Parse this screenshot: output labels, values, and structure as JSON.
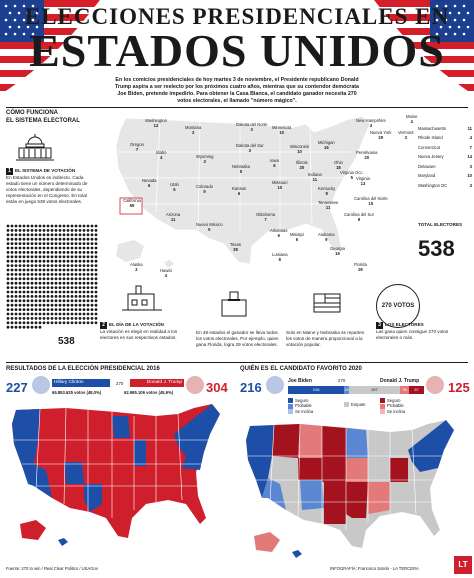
{
  "header": {
    "title_line1": "ELECCIONES PRESIDENCIALES EN",
    "title_line2": "ESTADOS UNIDOS",
    "intro": "En los comicios presidenciales de hoy martes 3 de noviembre, el Presidente republicano Donald Trump aspira a ser reelecto por los próximos cuatro años, mientras que su contendor demócrata Joe Biden, pretende impedirlo. Para obtener la Casa Blanca, el candidato ganador necesita 270 votos electorales, el llamado \"número mágico\"."
  },
  "how_it_works": {
    "title_line1": "CÓMO FUNCIONA",
    "title_line2": "EL SISTEMA ELECTORAL",
    "step1_title": "EL SISTEMA DE VOTACIÓN",
    "step1_text": "En Estados Unidos es indirecto. Cada estado tiene un número determinado de votos electorales, dependiendo de su representación en el Congreso. En total están en juego 538 votos electorales.",
    "total_label": "TOTAL ELECTORES",
    "total_value": "538",
    "dots_total": "538",
    "step2_title": "EL DÍA DE LA VOTACIÓN",
    "step2_text": "La votación es elegir en realidad a los electores en sus respectivos estados.",
    "step2_text_b": "En 48 estados el ganador se lleva todos los votos electorales. Por ejemplo, quien gana Florida, logra 29 votos electorales.",
    "step2_text_c": "Solo en Maine y Nebraska se reparten los votos de manera proporcional a la votación popular.",
    "step3_title": "LOS ELECTORES",
    "step3_text": "Las gana quien consigue 270 votos electorales o más.",
    "votes_circle": "270 VOTOS",
    "california_label": "California",
    "california_votes": "55"
  },
  "map_states": [
    {
      "name": "Washington",
      "votes": "12"
    },
    {
      "name": "Montana",
      "votes": "3"
    },
    {
      "name": "Dakota del Norte",
      "votes": "3"
    },
    {
      "name": "Minnesota",
      "votes": "10"
    },
    {
      "name": "Oregon",
      "votes": "7"
    },
    {
      "name": "Idaho",
      "votes": "4"
    },
    {
      "name": "Wyoming",
      "votes": "3"
    },
    {
      "name": "Dakota del Sur",
      "votes": "3"
    },
    {
      "name": "Wisconsin",
      "votes": "10"
    },
    {
      "name": "Michigan",
      "votes": "16"
    },
    {
      "name": "Iowa",
      "votes": "6"
    },
    {
      "name": "Nebraska",
      "votes": "5"
    },
    {
      "name": "Illinois",
      "votes": "20"
    },
    {
      "name": "Indiana",
      "votes": "11"
    },
    {
      "name": "Ohio",
      "votes": "18"
    },
    {
      "name": "Pensilvania",
      "votes": "20"
    },
    {
      "name": "Nevada",
      "votes": "6"
    },
    {
      "name": "Utah",
      "votes": "6"
    },
    {
      "name": "Colorado",
      "votes": "9"
    },
    {
      "name": "Kansas",
      "votes": "6"
    },
    {
      "name": "Missouri",
      "votes": "10"
    },
    {
      "name": "Kentucky",
      "votes": "8"
    },
    {
      "name": "Virginia",
      "votes": "13"
    },
    {
      "name": "Virginia Occ.",
      "votes": "5"
    },
    {
      "name": "Arizona",
      "votes": "11"
    },
    {
      "name": "Nuevo México",
      "votes": "5"
    },
    {
      "name": "Oklahoma",
      "votes": "7"
    },
    {
      "name": "Arkansas",
      "votes": "6"
    },
    {
      "name": "Tennessee",
      "votes": "11"
    },
    {
      "name": "Carolina del Norte",
      "votes": "15"
    },
    {
      "name": "Carolina del Sur",
      "votes": "9"
    },
    {
      "name": "Misisipi",
      "votes": "6"
    },
    {
      "name": "Alabama",
      "votes": "9"
    },
    {
      "name": "Georgia",
      "votes": "16"
    },
    {
      "name": "Texas",
      "votes": "38"
    },
    {
      "name": "Luisiana",
      "votes": "8"
    },
    {
      "name": "Florida",
      "votes": "29"
    },
    {
      "name": "Alaska",
      "votes": "3"
    },
    {
      "name": "Hawái",
      "votes": "4"
    },
    {
      "name": "Nueva York",
      "votes": "29"
    },
    {
      "name": "Maine",
      "votes": "4"
    },
    {
      "name": "New Hampshire",
      "votes": "4"
    },
    {
      "name": "Vermont",
      "votes": "3"
    }
  ],
  "east_labels": [
    {
      "name": "Massachusetts",
      "votes": "11"
    },
    {
      "name": "Rhode Island",
      "votes": "4"
    },
    {
      "name": "Connecticut",
      "votes": "7"
    },
    {
      "name": "Nueva Jersey",
      "votes": "14"
    },
    {
      "name": "Delaware",
      "votes": "3"
    },
    {
      "name": "Maryland",
      "votes": "10"
    },
    {
      "name": "Washington DC",
      "votes": "3"
    }
  ],
  "results_2016": {
    "title": "RESULTADOS DE LA ELECCIÓN PRESIDENCIAL 2016",
    "clinton_name": "Hillary Clinton",
    "trump_name": "Donald J. Trump",
    "clinton_ev": "227",
    "trump_ev": "304",
    "threshold": "270",
    "clinton_popular": "65.853.625 votos (48,0%)",
    "trump_popular": "62.985.106 votos (45,9%)",
    "blue": "#1d4fa8",
    "red": "#d01f2c"
  },
  "forecast_2020": {
    "title": "QUIÉN ES EL CANDIDATO FAVORITO 2020",
    "biden_name": "Joe Biden",
    "trump_name": "Donald J. Trump",
    "biden_ev": "216",
    "trump_ev": "125",
    "threshold": "270",
    "tossup": "197",
    "seg1": "216",
    "seg2": "16",
    "seg3": "35",
    "seg4": "57",
    "seg5": "33",
    "legend_blue": [
      "Seguro",
      "Probable",
      "Se inclina"
    ],
    "legend_red": [
      "Seguro",
      "Probable",
      "Se inclina"
    ],
    "legend_tossup": "Empate"
  },
  "footer": {
    "source": "Fuente: 270 to win / Real Clear Politics / USAGov",
    "credit": "INFOGRAFÍA: Francisco Sotelo - LA TERCERA",
    "logo": "LT"
  }
}
